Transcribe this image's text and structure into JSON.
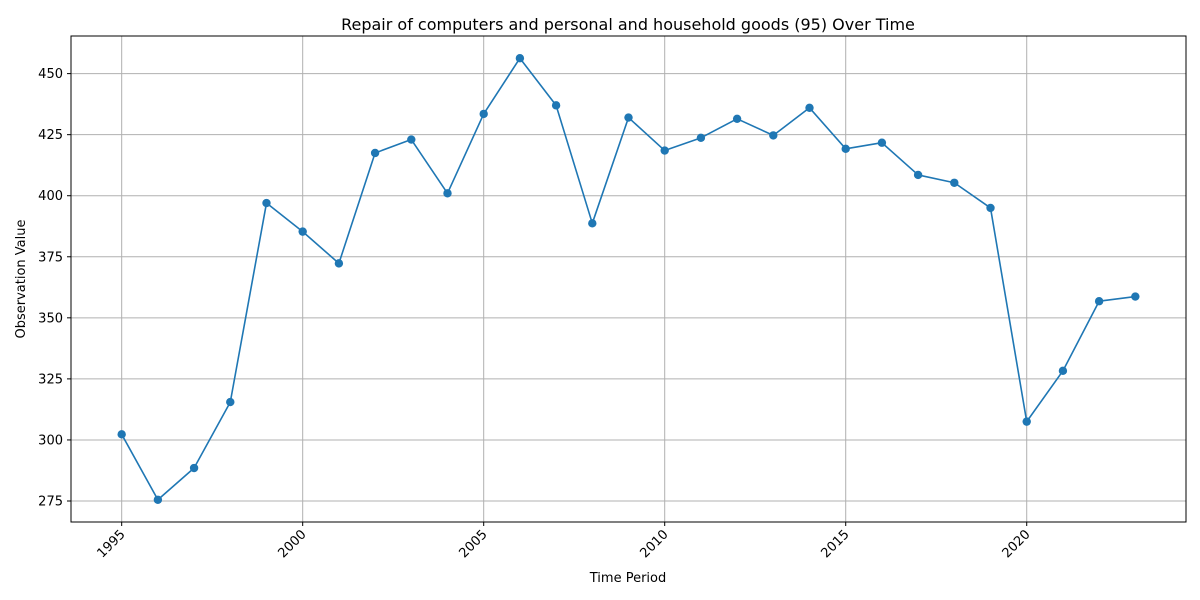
{
  "chart_data": {
    "type": "line",
    "title": "Repair of computers and personal and household goods (95) Over Time",
    "xlabel": "Time Period",
    "ylabel": "Observation Value",
    "x": [
      1995,
      1996,
      1997,
      1998,
      1999,
      2000,
      2001,
      2002,
      2003,
      2004,
      2005,
      2006,
      2007,
      2008,
      2009,
      2010,
      2011,
      2012,
      2013,
      2014,
      2015,
      2016,
      2017,
      2018,
      2019,
      2020,
      2021,
      2022,
      2023
    ],
    "series": [
      {
        "values": [
          302.3,
          275.5,
          288.5,
          315.5,
          397.0,
          385.3,
          372.3,
          417.5,
          423.0,
          401.0,
          433.5,
          456.3,
          437.0,
          388.7,
          432.0,
          418.5,
          423.7,
          431.5,
          424.7,
          436.0,
          419.2,
          421.7,
          408.5,
          405.3,
          395.0,
          307.5,
          328.3,
          356.8,
          358.7
        ],
        "color": "#1f77b4"
      }
    ],
    "xlim": [
      1993.6,
      2024.4
    ],
    "ylim": [
      266.4,
      465.4
    ],
    "xticks": [
      1995,
      2000,
      2005,
      2010,
      2015,
      2020
    ],
    "xtick_labels": [
      "1995",
      "2000",
      "2005",
      "2010",
      "2015",
      "2020"
    ],
    "yticks": [
      275,
      300,
      325,
      350,
      375,
      400,
      425,
      450
    ],
    "ytick_labels": [
      "275",
      "300",
      "325",
      "350",
      "375",
      "400",
      "425",
      "450"
    ],
    "grid": true,
    "marker": "circle"
  }
}
